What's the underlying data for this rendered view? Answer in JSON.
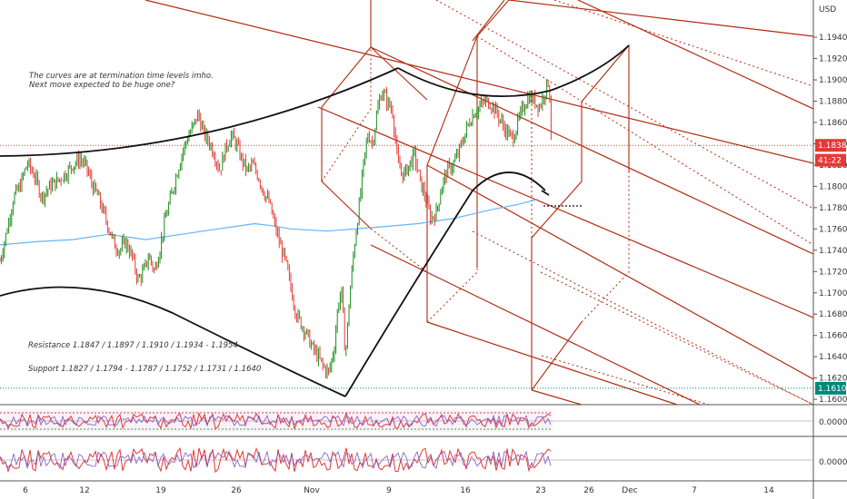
{
  "chart_data": {
    "type": "candlestick",
    "currency": "USD",
    "y_ticks": [
      "1.19400",
      "1.19200",
      "1.19000",
      "1.18800",
      "1.18600",
      "1.18400",
      "1.18200",
      "1.18000",
      "1.17800",
      "1.17600",
      "1.17400",
      "1.17200",
      "1.17000",
      "1.16800",
      "1.16600",
      "1.16400",
      "1.16200",
      "1.16000"
    ],
    "ylim": [
      1.1595,
      1.1975
    ],
    "x_ticks": [
      "6",
      "12",
      "19",
      "26",
      "Nov",
      "9",
      "16",
      "23",
      "26",
      "Dec",
      "7",
      "14"
    ],
    "price_tags": [
      {
        "label": "1.18385",
        "value": 1.18385,
        "color": "#e53935"
      },
      {
        "label": "41:22",
        "value": 1.18245,
        "color": "#e53935"
      },
      {
        "label": "1.16104",
        "value": 1.16104,
        "color": "#00897b"
      }
    ],
    "annotations": {
      "note_line1": "The curves are at termination time levels imho.",
      "note_line2": "Next move expected to be huge one?",
      "resistance": "Resistance 1.1847 / 1.1897 / 1.1910 / 1.1934 - 1.1954",
      "support": "Support 1.1827 / 1.1794 - 1.1787 / 1.1752 / 1.1731 / 1.1640"
    },
    "oscillator_labels": [
      "0.00000",
      "0.00000"
    ],
    "price_path": [
      [
        0,
        1.173
      ],
      [
        8,
        1.176
      ],
      [
        15,
        1.179
      ],
      [
        22,
        1.18
      ],
      [
        30,
        1.1822
      ],
      [
        38,
        1.181
      ],
      [
        46,
        1.179
      ],
      [
        55,
        1.18
      ],
      [
        63,
        1.1805
      ],
      [
        72,
        1.1812
      ],
      [
        80,
        1.182
      ],
      [
        88,
        1.1826
      ],
      [
        95,
        1.1818
      ],
      [
        102,
        1.18
      ],
      [
        108,
        1.179
      ],
      [
        114,
        1.1775
      ],
      [
        120,
        1.176
      ],
      [
        126,
        1.1745
      ],
      [
        132,
        1.174
      ],
      [
        138,
        1.1748
      ],
      [
        145,
        1.1735
      ],
      [
        152,
        1.1712
      ],
      [
        158,
        1.172
      ],
      [
        164,
        1.1735
      ],
      [
        170,
        1.172
      ],
      [
        176,
        1.1742
      ],
      [
        182,
        1.177
      ],
      [
        188,
        1.179
      ],
      [
        194,
        1.181
      ],
      [
        200,
        1.183
      ],
      [
        206,
        1.1845
      ],
      [
        212,
        1.1855
      ],
      [
        218,
        1.1868
      ],
      [
        224,
        1.185
      ],
      [
        230,
        1.1842
      ],
      [
        236,
        1.183
      ],
      [
        242,
        1.1815
      ],
      [
        248,
        1.1835
      ],
      [
        254,
        1.1848
      ],
      [
        260,
        1.184
      ],
      [
        266,
        1.1825
      ],
      [
        272,
        1.1815
      ],
      [
        278,
        1.182
      ],
      [
        284,
        1.181
      ],
      [
        290,
        1.1795
      ],
      [
        296,
        1.1785
      ],
      [
        302,
        1.1765
      ],
      [
        308,
        1.1745
      ],
      [
        314,
        1.173
      ],
      [
        320,
        1.1705
      ],
      [
        326,
        1.168
      ],
      [
        332,
        1.167
      ],
      [
        338,
        1.166
      ],
      [
        344,
        1.1648
      ],
      [
        350,
        1.164
      ],
      [
        356,
        1.163
      ],
      [
        362,
        1.1625
      ],
      [
        368,
        1.165
      ],
      [
        372,
        1.169
      ],
      [
        376,
        1.17
      ],
      [
        380,
        1.164
      ],
      [
        385,
        1.17
      ],
      [
        390,
        1.1745
      ],
      [
        395,
        1.178
      ],
      [
        400,
        1.182
      ],
      [
        405,
        1.185
      ],
      [
        410,
        1.184
      ],
      [
        415,
        1.187
      ],
      [
        420,
        1.189
      ],
      [
        426,
        1.188
      ],
      [
        432,
        1.187
      ],
      [
        438,
        1.182
      ],
      [
        444,
        1.181
      ],
      [
        450,
        1.182
      ],
      [
        456,
        1.183
      ],
      [
        462,
        1.1805
      ],
      [
        468,
        1.179
      ],
      [
        474,
        1.177
      ],
      [
        480,
        1.1775
      ],
      [
        486,
        1.18
      ],
      [
        492,
        1.1815
      ],
      [
        498,
        1.182
      ],
      [
        504,
        1.183
      ],
      [
        510,
        1.1845
      ],
      [
        516,
        1.186
      ],
      [
        522,
        1.187
      ],
      [
        528,
        1.1875
      ],
      [
        534,
        1.188
      ],
      [
        540,
        1.1878
      ],
      [
        546,
        1.187
      ],
      [
        552,
        1.186
      ],
      [
        558,
        1.185
      ],
      [
        564,
        1.1845
      ],
      [
        570,
        1.186
      ],
      [
        576,
        1.1875
      ],
      [
        582,
        1.1885
      ],
      [
        588,
        1.188
      ],
      [
        594,
        1.1875
      ],
      [
        600,
        1.189
      ],
      [
        604,
        1.19
      ],
      [
        607,
        1.184
      ],
      [
        609,
        1.1838
      ]
    ],
    "ma_path": [
      [
        0,
        1.1745
      ],
      [
        40,
        1.1748
      ],
      [
        80,
        1.175
      ],
      [
        120,
        1.1755
      ],
      [
        160,
        1.175
      ],
      [
        200,
        1.1755
      ],
      [
        240,
        1.176
      ],
      [
        280,
        1.1765
      ],
      [
        300,
        1.1763
      ],
      [
        320,
        1.176
      ],
      [
        360,
        1.1758
      ],
      [
        390,
        1.176
      ],
      [
        420,
        1.1762
      ],
      [
        460,
        1.1765
      ],
      [
        500,
        1.177
      ],
      [
        540,
        1.1778
      ],
      [
        570,
        1.1783
      ],
      [
        592,
        1.1788
      ]
    ]
  },
  "colors": {
    "up": "#1b8c1b",
    "down": "#e53935",
    "ma": "#64b5f6",
    "fork": "#b22a10",
    "curve": "#111111"
  },
  "icons": [
    "pitchfork-lines",
    "arc-curves"
  ]
}
